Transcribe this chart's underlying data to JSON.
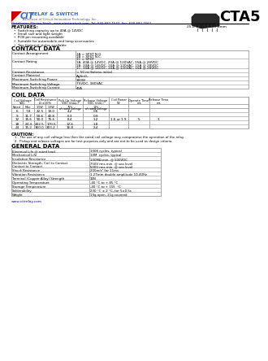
{
  "title": "CTA5",
  "logo_cit": "CIT",
  "logo_relay": "RELAY & SWITCH",
  "logo_subtitle": "A Division of Circuit Innovation Technology, Inc.",
  "distributor": "Distributor: Electro-Stock  www.electrostock.com  Tel: 630-682-1542  Fax: 630-682-1562",
  "features_title": "FEATURES:",
  "features": [
    "Switching capacity up to 40A @ 14VDC",
    "Small size and light weight",
    "PCB pin mounting available",
    "Suitable for automobile and lamp accessories",
    "Two footprint styles available"
  ],
  "dimensions": "25.8 X 20.5 X 20.8mm",
  "contact_data_title": "CONTACT DATA",
  "contact_rows": [
    [
      "Contact Arrangement",
      "1A = SPST N.O.\n1B = SPST N.C.\n1C = SPDT"
    ],
    [
      "Contact Rating",
      "1A: 40A @ 14VDC, 20A @ 120VAC, 15A @ 28VDC\n1B: 30A @ 14VDC, 20A @ 120VAC, 15A @ 28VDC\n1C: 30A @ 14VDC, 20A @ 120VAC, 15A @ 28VDC"
    ],
    [
      "Contact Resistance",
      "< 50 milliohms initial"
    ],
    [
      "Contact Material",
      "AgSnO₂"
    ],
    [
      "Maximum Switching Power",
      "300W"
    ],
    [
      "Maximum Switching Voltage",
      "75VDC, 380VAC"
    ],
    [
      "Maximum Switching Current",
      "40A"
    ]
  ],
  "contact_row_heights": [
    10,
    12,
    5,
    5,
    5,
    5,
    5
  ],
  "coil_data_title": "COIL DATA",
  "coil_headers": [
    "Coil Voltage\nVDC",
    "Coil Resistance\nΩ ±10%",
    "Pick Up Voltage\nVDC (max.)",
    "Release Voltage\nVDC (min.)",
    "Coil Power\nW",
    "Operate Time\nms",
    "Release Time\nms"
  ],
  "coil_rows": [
    [
      "6",
      "7.8",
      "22.5",
      "19.0",
      "4.2",
      "0.6",
      "",
      "",
      ""
    ],
    [
      "9",
      "11.7",
      "50.6",
      "42.8",
      "6.3",
      "0.9",
      "",
      "",
      ""
    ],
    [
      "12",
      "15.6",
      "90.0",
      "75.6",
      "8.4",
      "1.2",
      "1.6 or 1.9",
      "5",
      "3"
    ],
    [
      "18",
      "23.4",
      "202.5",
      "170.5",
      "12.6",
      "1.8",
      "",
      "",
      ""
    ],
    [
      "24",
      "31.2",
      "360.0",
      "303.2",
      "16.8",
      "2.4",
      "",
      "",
      ""
    ]
  ],
  "caution_title": "CAUTION:",
  "caution_items": [
    "The use of any coil voltage less than the rated coil voltage may compromise the operation of the relay.",
    "Pickup and release voltages are for test purposes only and are not to be used as design criteria."
  ],
  "general_data_title": "GENERAL DATA",
  "general_rows": [
    [
      "Electrical Life @ rated load",
      "100K cycles, typical"
    ],
    [
      "Mechanical Life",
      "10M  cycles, typical"
    ],
    [
      "Insulation Resistance",
      "100MΩ min. @ 500VDC"
    ],
    [
      "Dielectric Strength, Coil to Contact\nContact to Contact",
      "750V rms min. @ sea level\n500V rms min. @ sea level"
    ],
    [
      "Shock Resistance",
      "200m/s² for 11ms"
    ],
    [
      "Vibration Resistance",
      "1.27mm double amplitude 10-40Hz"
    ],
    [
      "Terminal (Copper Alloy) Strength",
      "10N"
    ],
    [
      "Operating Temperature",
      "-40 °C to + 85 °C"
    ],
    [
      "Storage Temperature",
      "-40 °C to + 155  °C"
    ],
    [
      "Solderability",
      "230 °C ± 2 °C, for 5±0.5s"
    ],
    [
      "Weight",
      "19g open, 21g covered"
    ]
  ],
  "general_row_heights": [
    5,
    5,
    5,
    9,
    5,
    5,
    5,
    5,
    5,
    5,
    5
  ],
  "url": "www.citrelay.com",
  "bg_color": "#ffffff",
  "table_line_color": "#aaaaaa",
  "blue_color": "#0000cc",
  "red_color": "#cc0000",
  "dark_blue": "#3366cc"
}
